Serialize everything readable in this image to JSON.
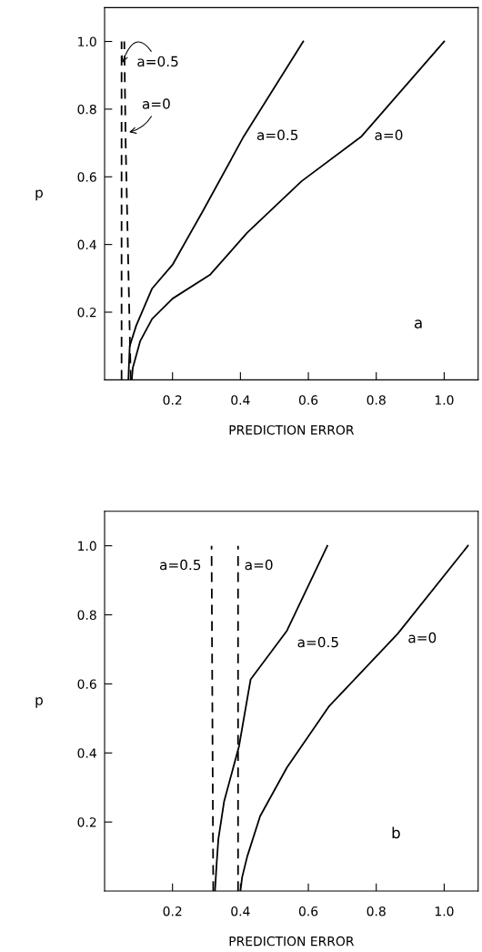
{
  "chart_data": [
    {
      "type": "line",
      "xlabel": "PREDICTION ERROR",
      "ylabel": "p",
      "xlim": [
        0,
        1.1
      ],
      "ylim": [
        0,
        1.1
      ],
      "xticks": [
        0.2,
        0.4,
        0.6,
        0.8,
        {
          "value": 1.0,
          "label": "1.0"
        }
      ],
      "yticks": [
        0.2,
        0.4,
        0.6,
        0.8,
        {
          "value": 1.0,
          "label": "1.0"
        }
      ],
      "grid": false,
      "legend": false,
      "series": [
        {
          "color": "#000000",
          "line_style": "solid",
          "x": [
            0.07,
            0.074,
            0.093,
            0.14,
            0.2,
            0.29,
            0.41,
            0.585
          ],
          "values": [
            0,
            0.1,
            0.16,
            0.27,
            0.34,
            0.5,
            0.72,
            1.0
          ]
        },
        {
          "color": "#000000",
          "line_style": "solid",
          "x": [
            0.08,
            0.083,
            0.105,
            0.14,
            0.2,
            0.31,
            0.42,
            0.58,
            0.757,
            1.0
          ],
          "values": [
            0,
            0.035,
            0.115,
            0.18,
            0.24,
            0.31,
            0.435,
            0.587,
            0.72,
            1.0
          ]
        },
        {
          "color": "#000000",
          "line_style": "dashed",
          "x": [
            0.05,
            0.05
          ],
          "values": [
            0,
            1.0
          ]
        },
        {
          "color": "#000000",
          "line_style": "dashed",
          "x": [
            0.077,
            0.062,
            0.058
          ],
          "values": [
            0,
            0.7,
            1.0
          ]
        }
      ],
      "annotations": [
        {
          "text": "a=0.5",
          "x": 0.05,
          "y": 0.93
        },
        {
          "text": "a=0",
          "x": 0.065,
          "y": 0.73
        },
        {
          "text": "a=0.5",
          "x": 0.41,
          "y": 0.72
        },
        {
          "text": "a=0",
          "x": 0.757,
          "y": 0.72
        },
        "a"
      ]
    },
    {
      "type": "line",
      "xlabel": "PREDICTION ERROR",
      "ylabel": "p",
      "xlim": [
        0,
        1.1
      ],
      "ylim": [
        0,
        1.1
      ],
      "xticks": [
        0.2,
        0.4,
        0.6,
        0.8,
        {
          "value": 1.0,
          "label": "1.0"
        }
      ],
      "yticks": [
        0.2,
        0.4,
        0.6,
        0.8,
        {
          "value": 1.0,
          "label": "1.0"
        }
      ],
      "grid": false,
      "legend": false,
      "series": [
        {
          "color": "#000000",
          "line_style": "solid",
          "x": [
            0.325,
            0.33,
            0.335,
            0.352,
            0.396,
            0.43,
            0.537,
            0.656
          ],
          "values": [
            0,
            0.08,
            0.15,
            0.26,
            0.42,
            0.613,
            0.754,
            1.0
          ]
        },
        {
          "color": "#000000",
          "line_style": "solid",
          "x": [
            0.4,
            0.405,
            0.42,
            0.458,
            0.537,
            0.66,
            0.863,
            1.07
          ],
          "values": [
            0,
            0.04,
            0.1,
            0.217,
            0.358,
            0.534,
            0.745,
            1.0
          ]
        },
        {
          "color": "#000000",
          "line_style": "dashed",
          "x": [
            0.32,
            0.315
          ],
          "values": [
            0,
            1.0
          ]
        },
        {
          "color": "#000000",
          "line_style": "dashed",
          "x": [
            0.393,
            0.393
          ],
          "values": [
            0,
            1.0
          ]
        }
      ],
      "annotations": [
        {
          "text": "a=0.5",
          "x": 0.315,
          "y": 0.956
        },
        {
          "text": "a=0",
          "x": 0.393,
          "y": 0.956
        },
        {
          "text": "a=0.5",
          "x": 0.537,
          "y": 0.754
        },
        {
          "text": "a=0",
          "x": 0.863,
          "y": 0.745
        },
        "b"
      ]
    }
  ]
}
